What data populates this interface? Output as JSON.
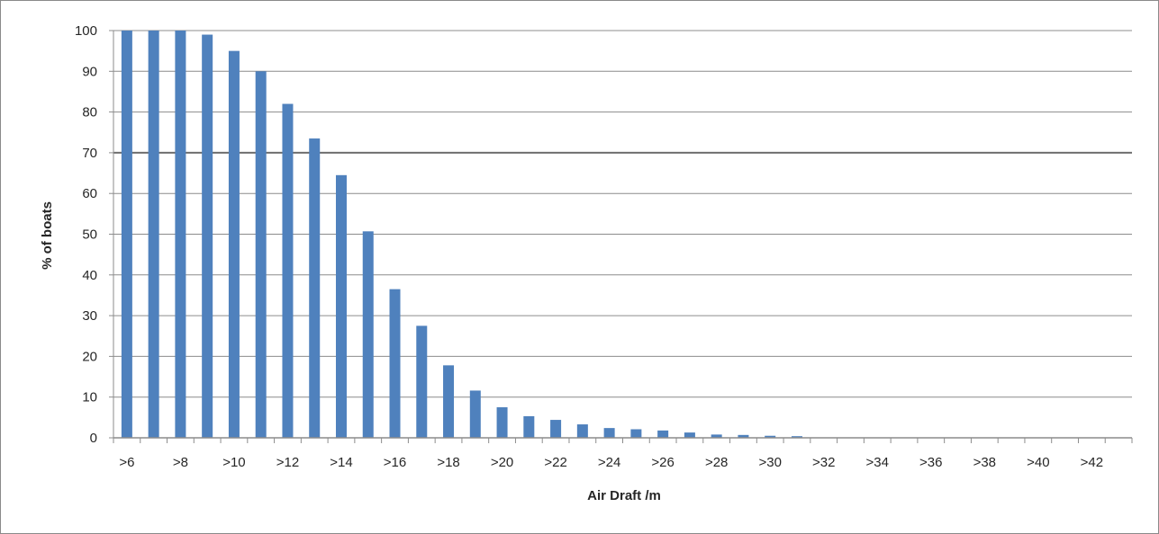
{
  "chart_data": {
    "type": "bar",
    "xlabel": "Air Draft /m",
    "ylabel": "% of boats",
    "ylim": [
      0,
      100
    ],
    "yticks": [
      0,
      10,
      20,
      30,
      40,
      50,
      60,
      70,
      80,
      90,
      100
    ],
    "categories": [
      ">6",
      ">7",
      ">8",
      ">9",
      ">10",
      ">11",
      ">12",
      ">13",
      ">14",
      ">15",
      ">16",
      ">17",
      ">18",
      ">19",
      ">20",
      ">21",
      ">22",
      ">23",
      ">24",
      ">25",
      ">26",
      ">27",
      ">28",
      ">29",
      ">30",
      ">31",
      ">32",
      ">33",
      ">34",
      ">35",
      ">36",
      ">37",
      ">38",
      ">39",
      ">40",
      ">41",
      ">42",
      ">43"
    ],
    "xtick_labels": [
      ">6",
      ">8",
      ">10",
      ">12",
      ">14",
      ">16",
      ">18",
      ">20",
      ">22",
      ">24",
      ">26",
      ">28",
      ">30",
      ">32",
      ">34",
      ">36",
      ">38",
      ">40",
      ">42"
    ],
    "values": [
      100,
      100,
      100,
      99,
      95,
      90,
      82,
      73.5,
      64.5,
      50.7,
      36.5,
      27.5,
      17.8,
      11.6,
      7.5,
      5.3,
      4.4,
      3.3,
      2.4,
      2.1,
      1.8,
      1.3,
      0.8,
      0.7,
      0.5,
      0.4,
      0,
      0,
      0,
      0,
      0,
      0,
      0,
      0,
      0,
      0,
      0,
      0
    ],
    "bar_color": "#4f81bd",
    "grid": true,
    "gridline_color": "#8c8c8c",
    "emphasized_gridline": 70
  }
}
